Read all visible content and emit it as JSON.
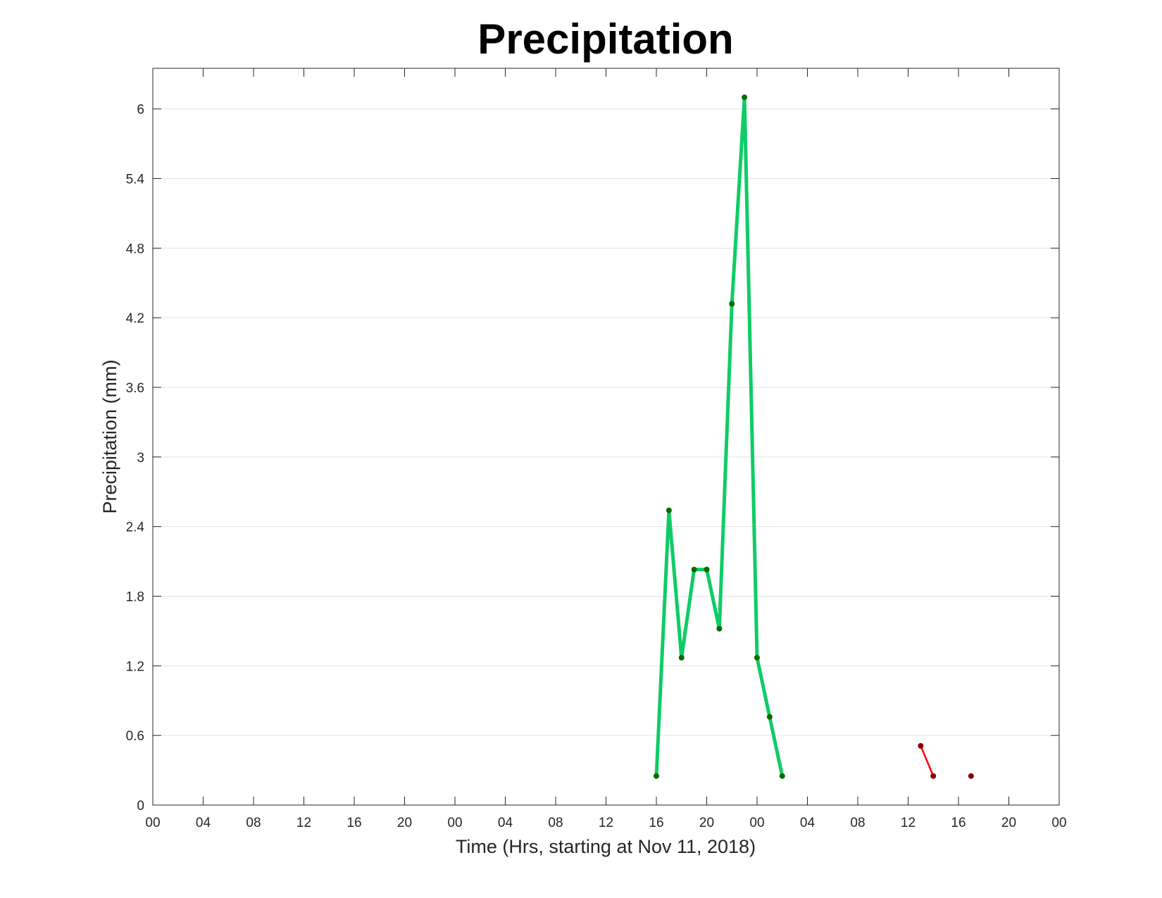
{
  "chart_data": {
    "type": "line",
    "title": "Precipitation",
    "xlabel": "Time (Hrs, starting at Nov 11, 2018)",
    "ylabel": "Precipitation (mm)",
    "x_unit": "hours",
    "xlim": [
      0,
      72
    ],
    "ylim": [
      0,
      6.35
    ],
    "x_ticks": [
      0,
      4,
      8,
      12,
      16,
      20,
      24,
      28,
      32,
      36,
      40,
      44,
      48,
      52,
      56,
      60,
      64,
      68,
      72
    ],
    "x_tick_labels": [
      "00",
      "04",
      "08",
      "12",
      "16",
      "20",
      "00",
      "04",
      "08",
      "12",
      "16",
      "20",
      "00",
      "04",
      "08",
      "12",
      "16",
      "20",
      "00"
    ],
    "y_ticks": [
      0,
      0.6,
      1.2,
      1.8,
      2.4,
      3,
      3.6,
      4.2,
      4.8,
      5.4,
      6
    ],
    "y_tick_labels": [
      "0",
      "0.6",
      "1.2",
      "1.8",
      "2.4",
      "3",
      "3.6",
      "4.2",
      "4.8",
      "5.4",
      "6"
    ],
    "grid": "horizontal",
    "series": [
      {
        "color": "#0fcc66",
        "marker_color": "#0a6a00",
        "line_width": "thick",
        "x": [
          40,
          41,
          42,
          43,
          44,
          45,
          46,
          47,
          48,
          49,
          50
        ],
        "values": [
          0.25,
          2.54,
          1.27,
          2.03,
          2.03,
          1.52,
          4.32,
          6.1,
          1.27,
          0.76,
          0.25
        ]
      },
      {
        "color": "#ff0000",
        "marker_color": "#8a0000",
        "line_width": "thin",
        "x": [
          61,
          62
        ],
        "values": [
          0.51,
          0.25
        ]
      },
      {
        "color": "#ff0000",
        "marker_color": "#8a0000",
        "line_width": "thin",
        "x": [
          65
        ],
        "values": [
          0.25
        ]
      }
    ]
  }
}
